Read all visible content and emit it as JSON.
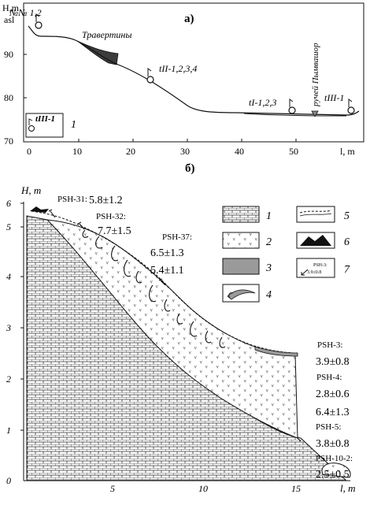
{
  "panel_a": {
    "label": "а)",
    "y_axis_label_1": "H,m",
    "y_axis_label_2": "asl",
    "x_axis_label": "l, m",
    "y_ticks": [
      "70",
      "80",
      "90"
    ],
    "x_ticks": [
      "0",
      "10",
      "20",
      "30",
      "40",
      "50",
      "l, m"
    ],
    "x_tick_values": [
      "0",
      "10",
      "20",
      "30",
      "40",
      "50"
    ],
    "points": [
      {
        "label": "№№ 1,2"
      },
      {
        "label": "tII-1,2,3,4"
      },
      {
        "label": "tI-1,2,3"
      },
      {
        "label": "tIII-1"
      }
    ],
    "travertine_label": "Травертины",
    "stream_label": "ручей Пымвашор",
    "legend_symbol": "tIII-1",
    "legend_num": "1"
  },
  "panel_b": {
    "label": "б)",
    "y_axis_label": "H, m",
    "x_axis_label": "l, m",
    "y_ticks": [
      "0",
      "1",
      "2",
      "3",
      "4",
      "5",
      "6"
    ],
    "x_ticks": [
      "5",
      "10",
      "15"
    ],
    "samples": [
      {
        "id": "PSH-31:",
        "ages": [
          "5.8±1.2"
        ]
      },
      {
        "id": "PSH-32:",
        "ages": [
          "7.7±1.5"
        ]
      },
      {
        "id": "PSH-37:",
        "ages": [
          "6.5±1.3",
          "5.4±1.1"
        ]
      },
      {
        "id": "PSH-3:",
        "ages": [
          "3.9±0.8"
        ]
      },
      {
        "id": "PSH-4:",
        "ages": [
          "2.8±0.6",
          "6.4±1.3"
        ]
      },
      {
        "id": "PSH-5:",
        "ages": [
          "3.8±0.8"
        ]
      },
      {
        "id": "PSH-10-2:",
        "ages": [
          "2.5±0.5"
        ]
      }
    ],
    "legend": [
      {
        "num": "1"
      },
      {
        "num": "2"
      },
      {
        "num": "3"
      },
      {
        "num": "4"
      },
      {
        "num": "5"
      },
      {
        "num": "6"
      },
      {
        "num": "7"
      }
    ],
    "legend7_sample": "PSH-3:",
    "legend7_age": "3.9±0.8"
  }
}
